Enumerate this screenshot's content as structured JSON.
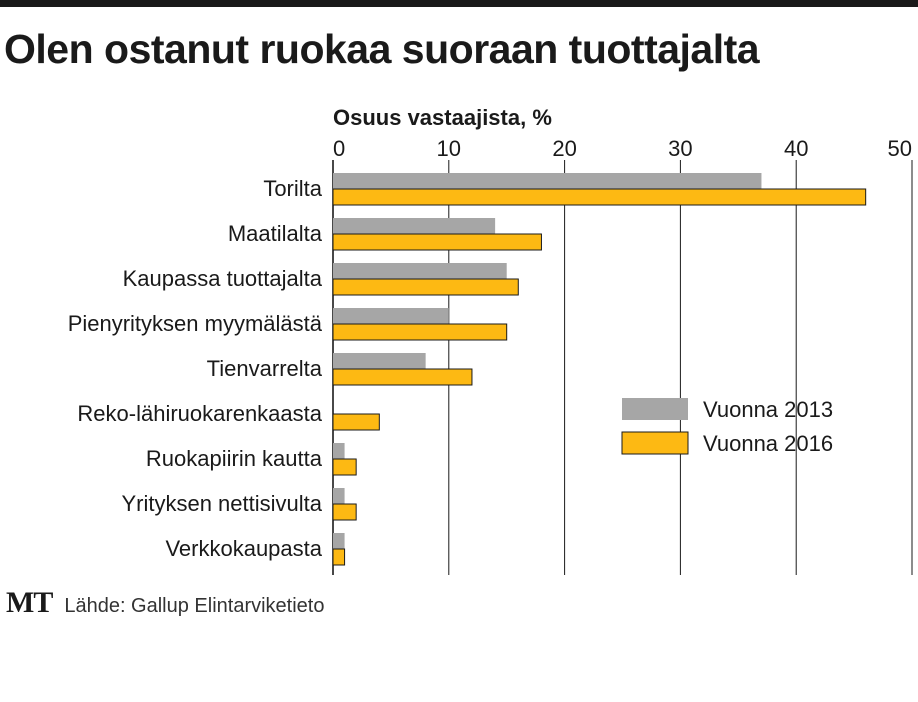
{
  "title": "Olen ostanut ruokaa suoraan tuottajalta",
  "footer": {
    "logo": "MT",
    "source": "Lähde: Gallup Elintarviketieto"
  },
  "colors": {
    "series_2013": "#a6a6a6",
    "series_2016": "#fdb913",
    "text": "#1a1a1a",
    "grid": "#1a1a1a"
  },
  "chart_data": {
    "type": "bar",
    "orientation": "horizontal",
    "xlabel": "Osuus vastaajista, %",
    "xlim": [
      0,
      50
    ],
    "xticks": [
      0,
      10,
      20,
      30,
      40,
      50
    ],
    "grid": true,
    "legend_position": "right",
    "categories": [
      "Torilta",
      "Maatilalta",
      "Kaupassa tuottajalta",
      "Pienyrityksen myymälästä",
      "Tienvarrelta",
      "Reko-lähiruokarenkaasta",
      "Ruokapiirin kautta",
      "Yrityksen nettisivulta",
      "Verkkokaupasta"
    ],
    "series": [
      {
        "name": "Vuonna 2013",
        "values": [
          37,
          14,
          15,
          10,
          8,
          0,
          1,
          1,
          1
        ]
      },
      {
        "name": "Vuonna 2016",
        "values": [
          46,
          18,
          16,
          15,
          12,
          4,
          2,
          2,
          1
        ]
      }
    ]
  }
}
